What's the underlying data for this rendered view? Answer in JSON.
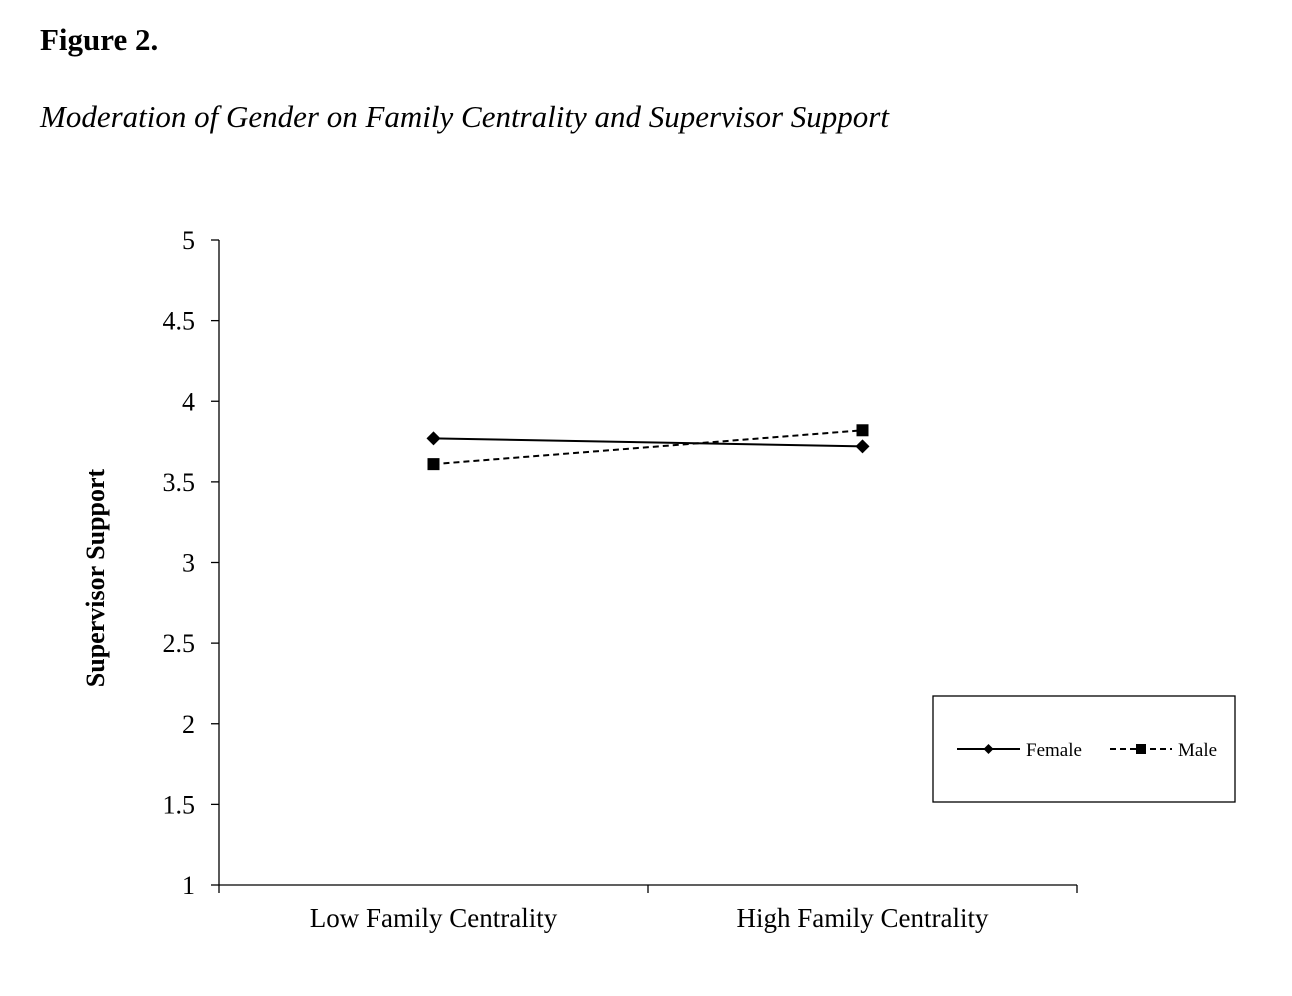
{
  "figure": {
    "label": "Figure 2.",
    "caption": "Moderation of Gender on Family Centrality and Supervisor Support"
  },
  "chart_data": {
    "type": "line",
    "title": "Moderation of Gender on Family Centrality and Supervisor Support",
    "xlabel": "",
    "ylabel": "Supervisor Support",
    "categories": [
      "Low Family Centrality",
      "High Family Centrality"
    ],
    "ylim": [
      1,
      5
    ],
    "yticks": [
      "1",
      "1.5",
      "2",
      "2.5",
      "3",
      "3.5",
      "4",
      "4.5",
      "5"
    ],
    "grid": false,
    "legend_position": "bottom-right",
    "series": [
      {
        "name": "Female",
        "values": [
          3.77,
          3.72
        ],
        "line_style": "solid",
        "marker": "diamond",
        "color": "#000000"
      },
      {
        "name": "Male",
        "values": [
          3.61,
          3.82
        ],
        "line_style": "dashed",
        "marker": "square",
        "color": "#000000"
      }
    ]
  }
}
